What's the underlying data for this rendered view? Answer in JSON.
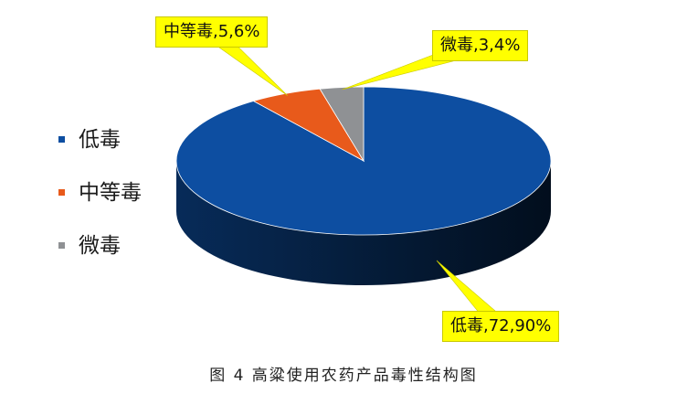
{
  "chart_data": {
    "type": "pie",
    "style": "3d",
    "title": "",
    "slices": [
      {
        "category": "低毒",
        "count": 72,
        "percent": 90,
        "label": "低毒,72,90%",
        "color": "#0d4ea1"
      },
      {
        "category": "中等毒",
        "count": 5,
        "percent": 6,
        "label": "中等毒,5,6%",
        "color": "#e85a1b"
      },
      {
        "category": "微毒",
        "count": 3,
        "percent": 4,
        "label": "微毒,3,4%",
        "color": "#8f9194"
      }
    ],
    "legend": {
      "placement": "left",
      "entries": [
        "低毒",
        "中等毒",
        "微毒"
      ]
    },
    "callout_color": "#ffff00"
  },
  "caption": "图 4  高粱使用农药产品毒性结构图"
}
